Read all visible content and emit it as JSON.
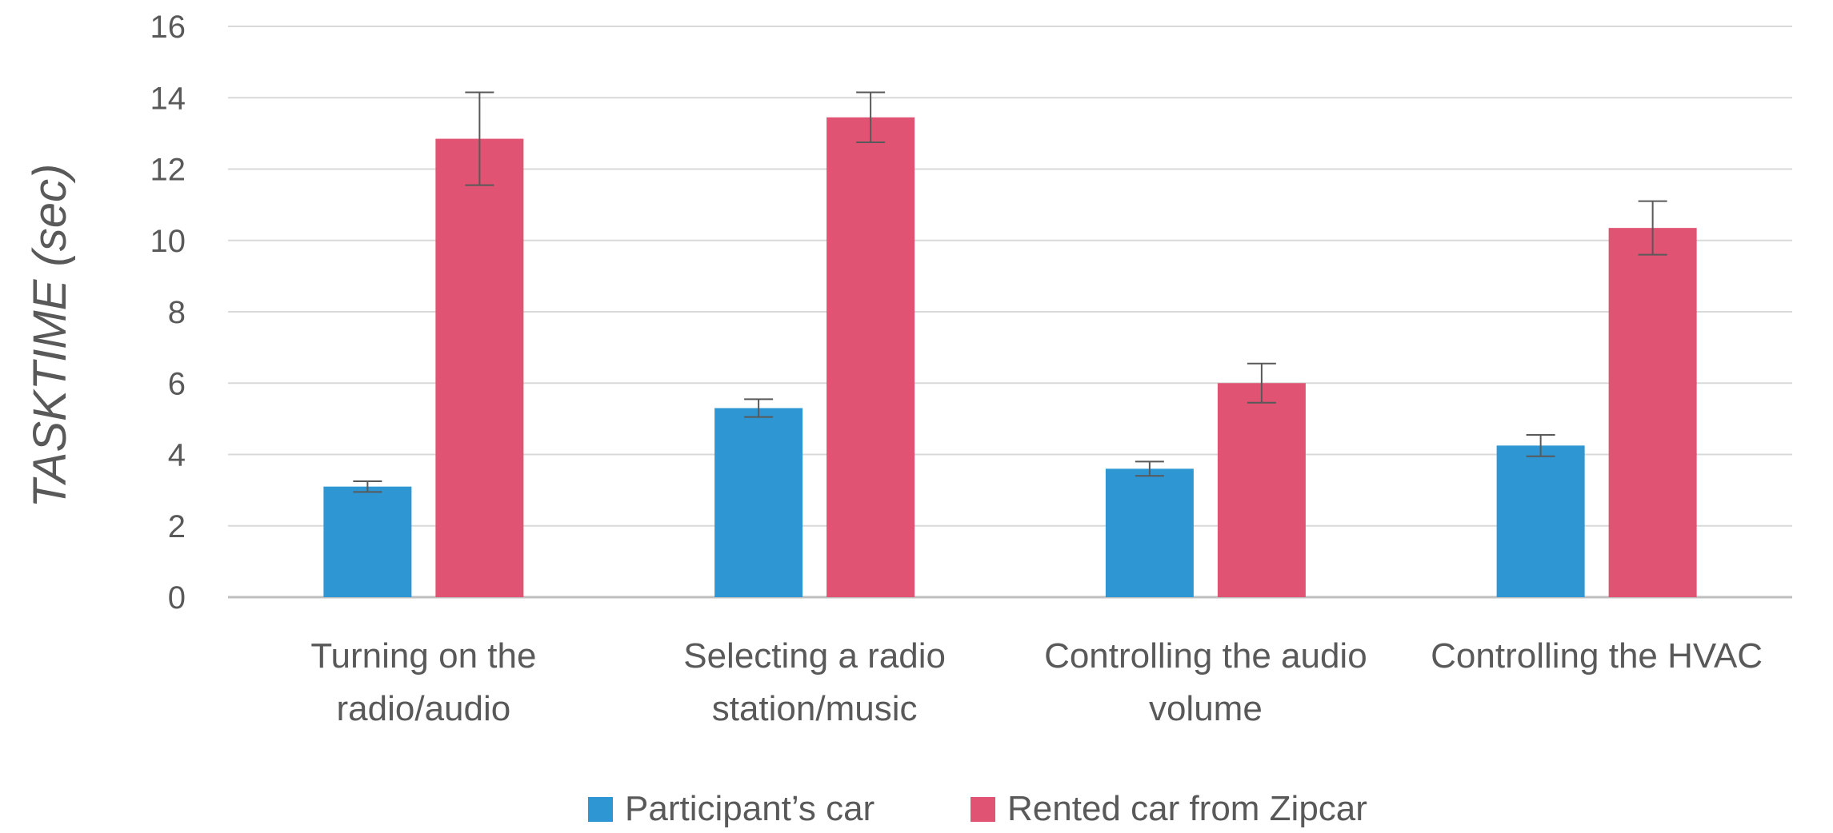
{
  "chart_data": {
    "type": "bar",
    "title": "",
    "xlabel": "",
    "ylabel": "TASKTIME (sec)",
    "ylim": [
      0,
      16
    ],
    "yticks": [
      0,
      2,
      4,
      6,
      8,
      10,
      12,
      14,
      16
    ],
    "grid": true,
    "legend_position": "bottom",
    "categories": [
      [
        "Turning on the",
        "radio/audio"
      ],
      [
        "Selecting a radio",
        "station/music"
      ],
      [
        "Controlling the audio",
        "volume"
      ],
      [
        "Controlling the HVAC"
      ]
    ],
    "series": [
      {
        "name": "Participant’s car",
        "color": "#2E97D3",
        "values": [
          3.1,
          5.3,
          3.6,
          4.25
        ],
        "error": [
          0.15,
          0.25,
          0.2,
          0.3
        ]
      },
      {
        "name": "Rented car from Zipcar",
        "color": "#E05372",
        "values": [
          12.85,
          13.45,
          6.0,
          10.35
        ],
        "error": [
          1.3,
          0.7,
          0.55,
          0.75
        ]
      }
    ]
  }
}
